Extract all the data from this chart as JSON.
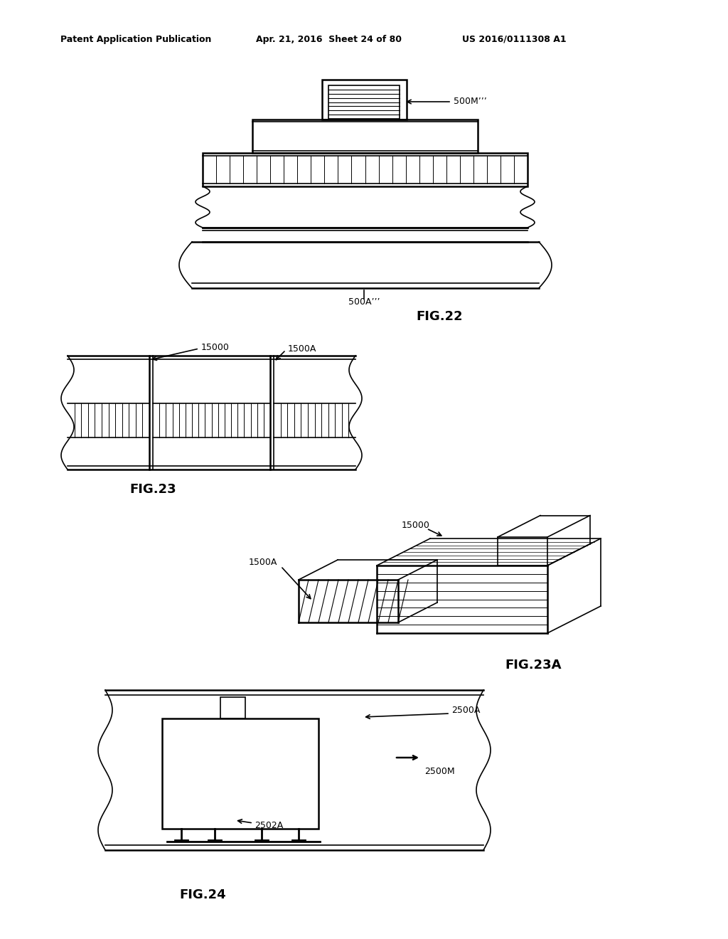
{
  "bg_color": "#ffffff",
  "line_color": "#000000",
  "header_text": "Patent Application Publication",
  "header_date": "Apr. 21, 2016  Sheet 24 of 80",
  "header_patent": "US 2016/0111308 A1",
  "fig22_label": "FIG.22",
  "fig23_label": "FIG.23",
  "fig23a_label": "FIG.23A",
  "fig24_label": "FIG.24",
  "label_500M": "500M’’’",
  "label_500A": "500A’’’",
  "label_15000": "15000",
  "label_1500A": "1500A",
  "label_2500A": "2500A",
  "label_2500M": "2500M",
  "label_2502A": "2502A"
}
